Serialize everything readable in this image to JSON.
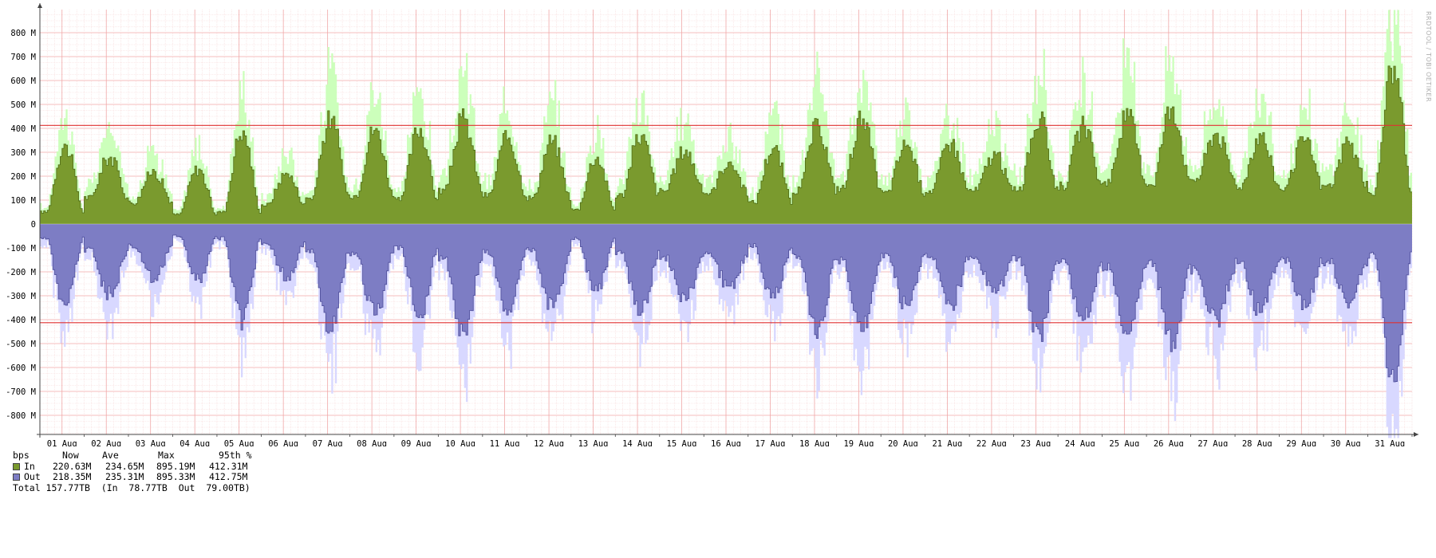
{
  "watermark": "RRDTOOL / TOBI OETIKER",
  "colors": {
    "in_avg": "#7a9a2e",
    "in_avg_line": "#4e6b14",
    "in_max": "#ccffbb",
    "out_avg": "#7d7dc4",
    "out_avg_line": "#4d4d9a",
    "out_max": "#d8d8ff",
    "percentile_line": "#e03030",
    "grid_major": "#f0a8a8",
    "grid_minor": "#f7d8d8",
    "axis": "#444444"
  },
  "legend": {
    "header": {
      "unit": "bps",
      "now": "Now",
      "ave": "Ave",
      "max": "Max",
      "p95": "95th %"
    },
    "in": {
      "label": "In",
      "now": "220.63M",
      "ave": "234.65M",
      "max": "895.19M",
      "p95": "412.31M"
    },
    "out": {
      "label": "Out",
      "now": "218.35M",
      "ave": "235.31M",
      "max": "895.33M",
      "p95": "412.75M"
    },
    "total": "Total 157.77TB  (In  78.77TB  Out  79.00TB)"
  },
  "chart_data": {
    "type": "area",
    "ylabel": "",
    "ylim": [
      -900,
      900
    ],
    "y_unit": "M",
    "yticks": [
      "800 M",
      "700 M",
      "600 M",
      "500 M",
      "400 M",
      "300 M",
      "200 M",
      "100 M",
      "0",
      "-100 M",
      "-200 M",
      "-300 M",
      "-400 M",
      "-500 M",
      "-600 M",
      "-700 M",
      "-800 M"
    ],
    "ytick_values": [
      800,
      700,
      600,
      500,
      400,
      300,
      200,
      100,
      0,
      -100,
      -200,
      -300,
      -400,
      -500,
      -600,
      -700,
      -800
    ],
    "categories": [
      "01 Aug",
      "02 Aug",
      "03 Aug",
      "04 Aug",
      "05 Aug",
      "06 Aug",
      "07 Aug",
      "08 Aug",
      "09 Aug",
      "10 Aug",
      "11 Aug",
      "12 Aug",
      "13 Aug",
      "14 Aug",
      "15 Aug",
      "16 Aug",
      "17 Aug",
      "18 Aug",
      "19 Aug",
      "20 Aug",
      "21 Aug",
      "22 Aug",
      "23 Aug",
      "24 Aug",
      "25 Aug",
      "26 Aug",
      "27 Aug",
      "28 Aug",
      "29 Aug",
      "30 Aug",
      "31 Aug"
    ],
    "percentile_95": {
      "in": 412.31,
      "out": -412.75
    },
    "daily_peak_in": [
      330,
      280,
      220,
      230,
      390,
      210,
      440,
      400,
      400,
      440,
      360,
      350,
      280,
      370,
      310,
      260,
      320,
      410,
      440,
      330,
      340,
      290,
      440,
      410,
      450,
      490,
      380,
      370,
      350,
      330,
      660
    ],
    "daily_low_in": [
      50,
      110,
      90,
      40,
      50,
      80,
      110,
      120,
      100,
      140,
      120,
      110,
      60,
      120,
      140,
      130,
      90,
      140,
      150,
      130,
      140,
      140,
      150,
      160,
      180,
      170,
      190,
      160,
      150,
      160,
      130
    ],
    "daily_peak_out": [
      340,
      290,
      230,
      230,
      400,
      220,
      450,
      380,
      380,
      450,
      360,
      350,
      280,
      370,
      320,
      260,
      310,
      430,
      450,
      340,
      340,
      290,
      460,
      400,
      460,
      490,
      400,
      370,
      350,
      330,
      660
    ],
    "daily_low_out": [
      60,
      110,
      90,
      50,
      60,
      80,
      110,
      120,
      100,
      140,
      120,
      110,
      60,
      120,
      140,
      130,
      90,
      140,
      150,
      130,
      140,
      140,
      150,
      160,
      180,
      170,
      190,
      160,
      150,
      160,
      130
    ],
    "series": [
      {
        "name": "In",
        "summary": {
          "now": "220.63M",
          "ave": "234.65M",
          "max": "895.19M",
          "p95": "412.31M"
        }
      },
      {
        "name": "Out",
        "summary": {
          "now": "218.35M",
          "ave": "235.31M",
          "max": "895.33M",
          "p95": "412.75M"
        }
      }
    ],
    "grid": true
  }
}
